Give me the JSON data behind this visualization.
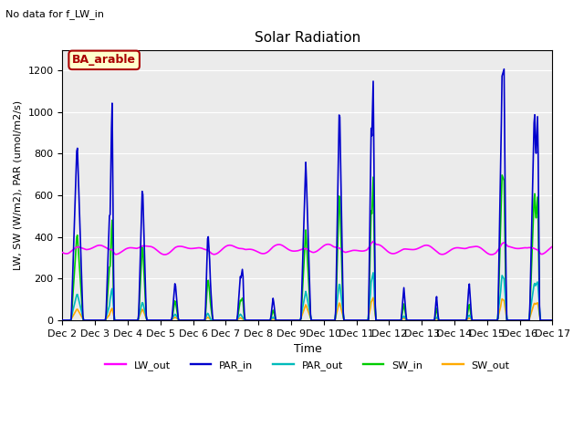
{
  "title": "Solar Radiation",
  "subtitle": "No data for f_LW_in",
  "xlabel": "Time",
  "ylabel": "LW, SW (W/m2), PAR (umol/m2/s)",
  "ylim": [
    0,
    1300
  ],
  "yticks": [
    0,
    200,
    400,
    600,
    800,
    1000,
    1200
  ],
  "xlim_days": [
    2,
    17
  ],
  "xtick_labels": [
    "Dec 2",
    "Dec 3",
    "Dec 4",
    "Dec 5",
    "Dec 6",
    "Dec 7",
    "Dec 8",
    "Dec 9",
    "Dec 10",
    "Dec 11",
    "Dec 12",
    "Dec 13",
    "Dec 14",
    "Dec 15",
    "Dec 16",
    "Dec 17"
  ],
  "fig_facecolor": "#ffffff",
  "axes_facecolor": "#ebebeb",
  "grid_color": "#ffffff",
  "legend_items": [
    {
      "label": "LW_out",
      "color": "#ff00ff",
      "lw": 1.2
    },
    {
      "label": "PAR_in",
      "color": "#0000cc",
      "lw": 1.2
    },
    {
      "label": "PAR_out",
      "color": "#00bbbb",
      "lw": 1.2
    },
    {
      "label": "SW_in",
      "color": "#00cc00",
      "lw": 1.2
    },
    {
      "label": "SW_out",
      "color": "#ffaa00",
      "lw": 1.2
    }
  ],
  "annotation_box": {
    "text": "BA_arable",
    "facecolor": "#ffffcc",
    "edgecolor": "#aa0000",
    "textcolor": "#aa0000",
    "fontsize": 9
  },
  "subtitle_fontsize": 8,
  "title_fontsize": 11,
  "axis_fontsize": 8,
  "xlabel_fontsize": 9,
  "ylabel_fontsize": 8
}
